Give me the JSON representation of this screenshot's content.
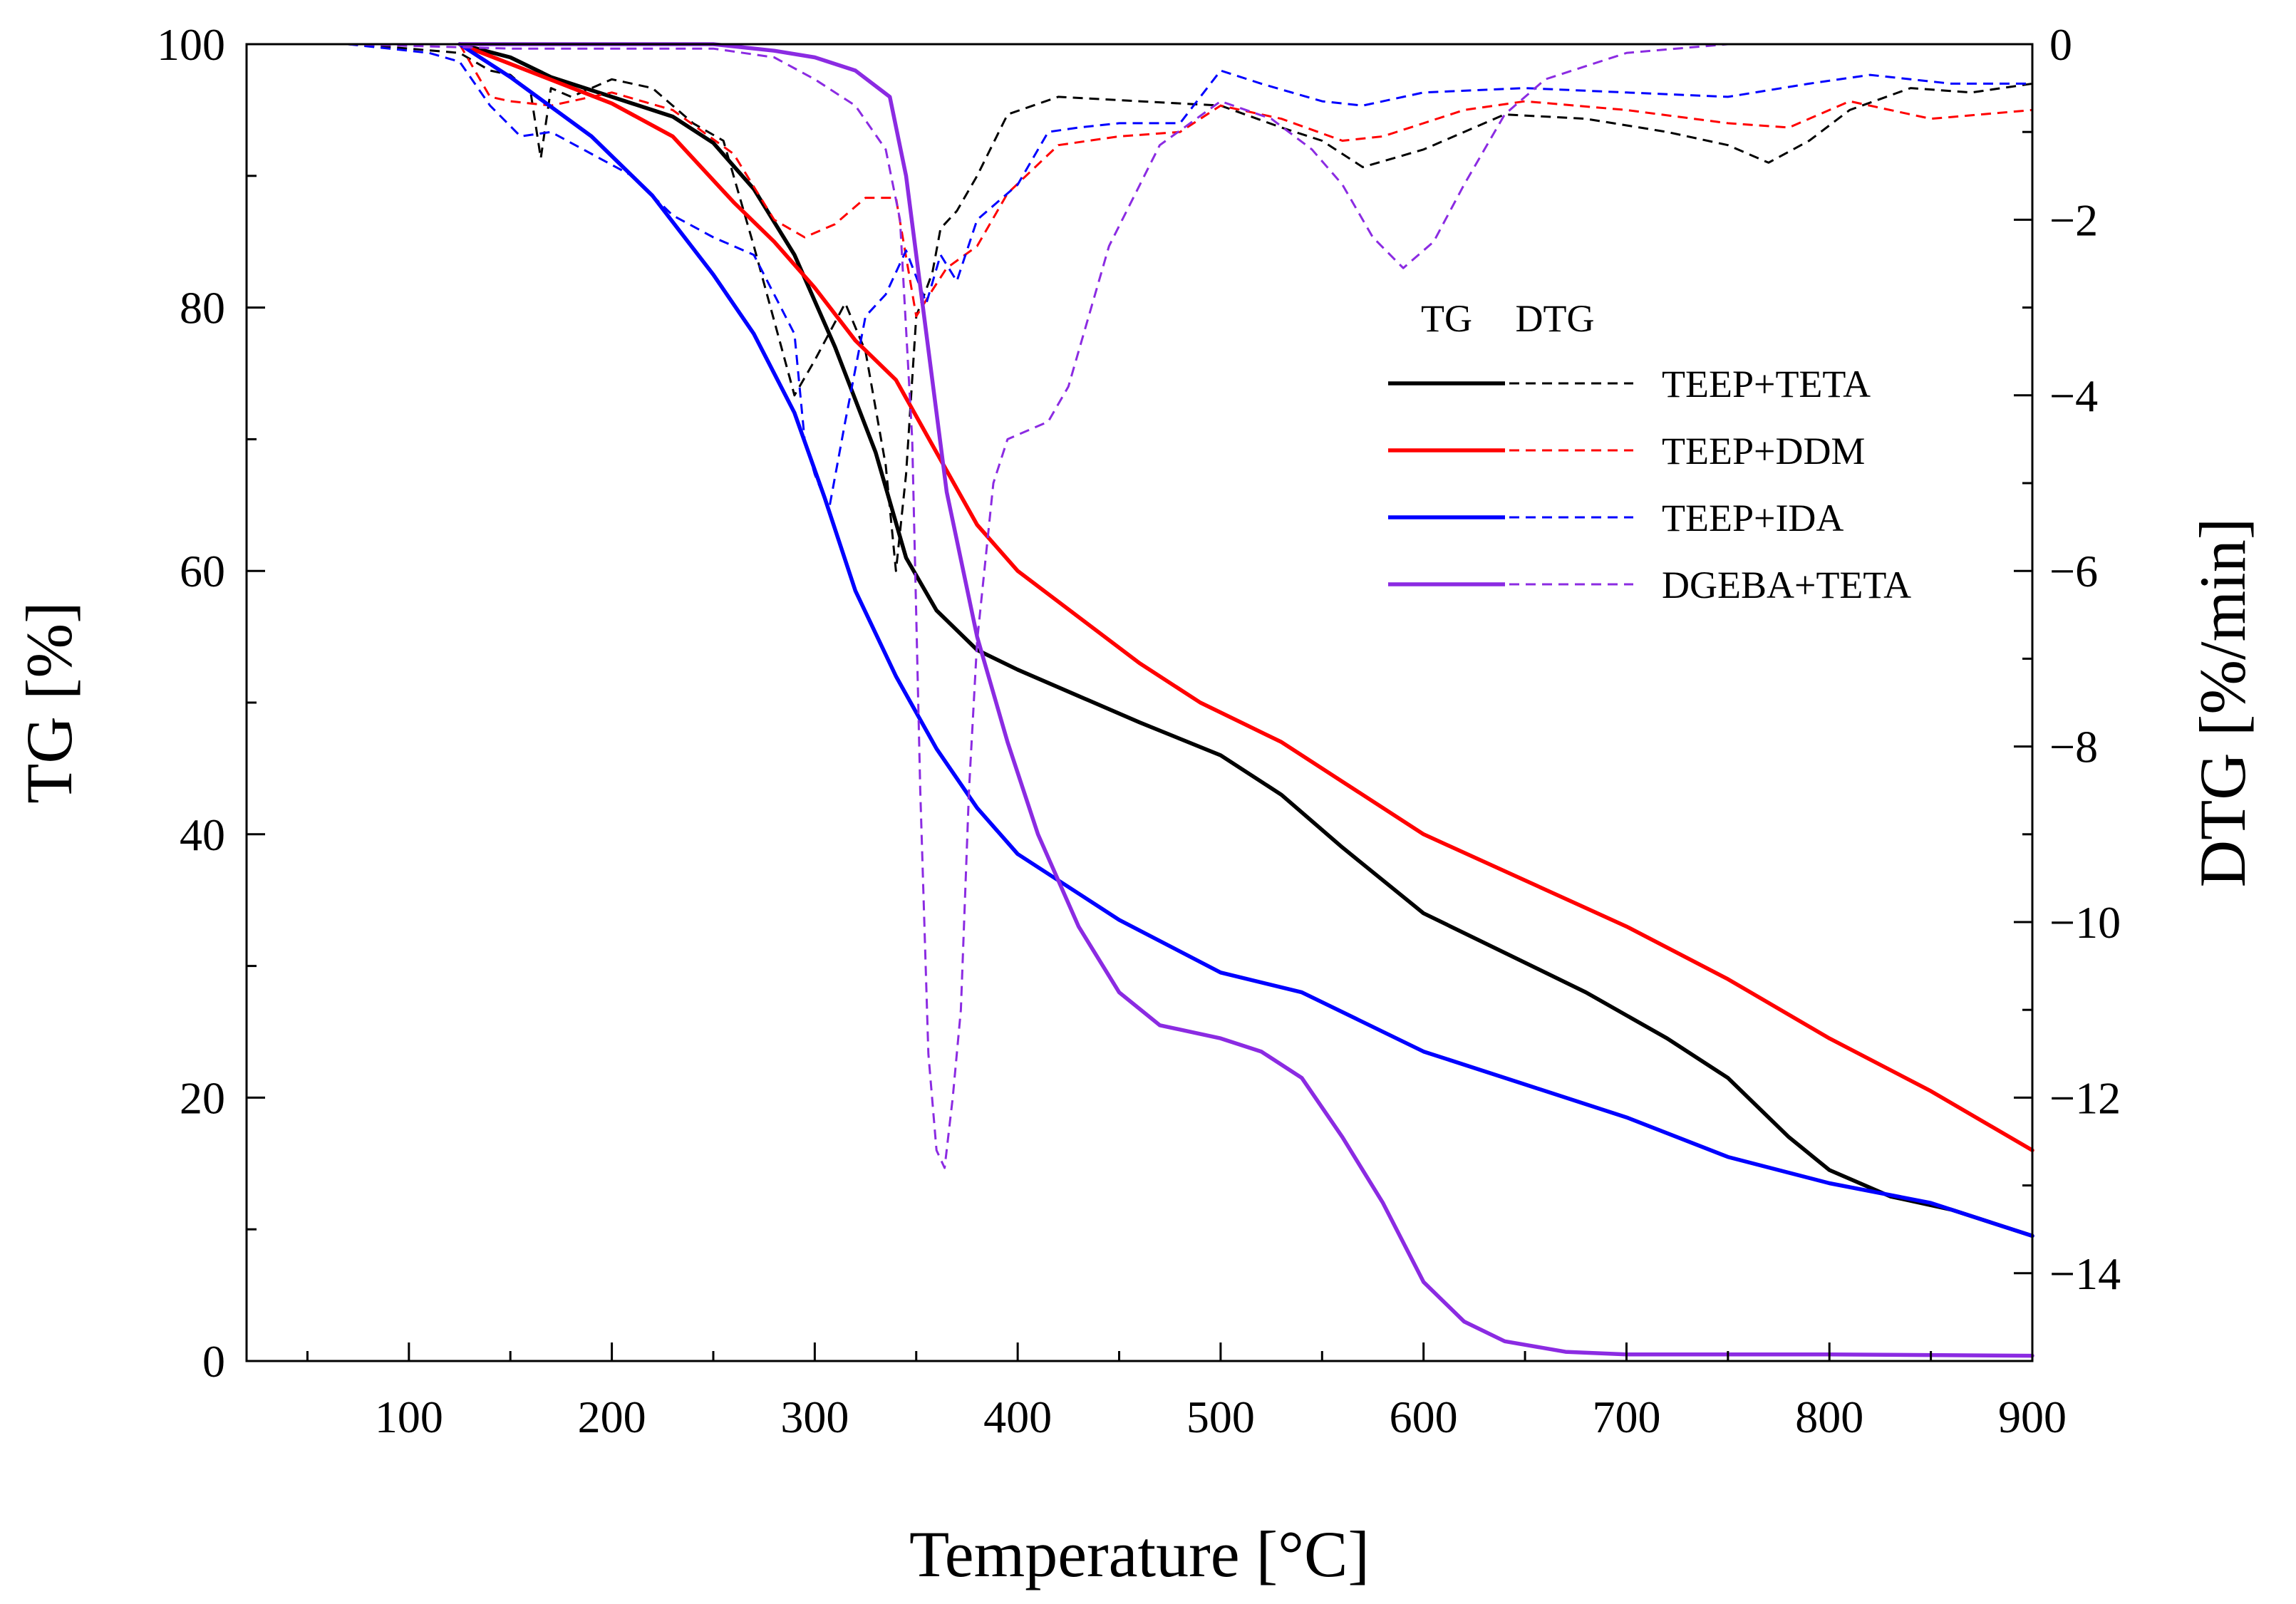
{
  "chart_data": {
    "type": "line",
    "title": "",
    "xlabel": "Temperature [°C]",
    "ylabel": "TG [%]",
    "y2label": "DTG [%/min]",
    "xlim": [
      20,
      900
    ],
    "ylim": [
      0,
      100
    ],
    "y2lim": [
      -15,
      0
    ],
    "x_ticks": [
      100,
      200,
      300,
      400,
      500,
      600,
      700,
      800,
      900
    ],
    "y_ticks": [
      0,
      20,
      40,
      60,
      80,
      100
    ],
    "y2_ticks": [
      0,
      -2,
      -4,
      -6,
      -8,
      -10,
      -12,
      -14
    ],
    "grid": false,
    "legend_position": "center-right",
    "legend_headers": [
      "TG",
      "DTG"
    ],
    "series": [
      {
        "name": "TEEP+TETA",
        "color": "#000000",
        "tg": [
          [
            125,
            100
          ],
          [
            150,
            99
          ],
          [
            170,
            97.5
          ],
          [
            200,
            96
          ],
          [
            230,
            94.5
          ],
          [
            250,
            92.5
          ],
          [
            270,
            89
          ],
          [
            290,
            84
          ],
          [
            310,
            77
          ],
          [
            330,
            69
          ],
          [
            345,
            61
          ],
          [
            360,
            57
          ],
          [
            380,
            54
          ],
          [
            400,
            52.5
          ],
          [
            430,
            50.5
          ],
          [
            460,
            48.5
          ],
          [
            500,
            46
          ],
          [
            530,
            43
          ],
          [
            560,
            39
          ],
          [
            600,
            34
          ],
          [
            640,
            31
          ],
          [
            680,
            28
          ],
          [
            720,
            24.5
          ],
          [
            750,
            21.5
          ],
          [
            780,
            17
          ],
          [
            800,
            14.5
          ],
          [
            830,
            12.5
          ],
          [
            860,
            11.5
          ],
          [
            900,
            9.5
          ]
        ],
        "dtg": [
          [
            70,
            0
          ],
          [
            100,
            -0.05
          ],
          [
            125,
            -0.1
          ],
          [
            140,
            -0.3
          ],
          [
            150,
            -0.35
          ],
          [
            160,
            -0.55
          ],
          [
            165,
            -1.3
          ],
          [
            170,
            -0.5
          ],
          [
            180,
            -0.6
          ],
          [
            200,
            -0.4
          ],
          [
            220,
            -0.5
          ],
          [
            240,
            -0.9
          ],
          [
            255,
            -1.1
          ],
          [
            270,
            -2.3
          ],
          [
            290,
            -4.0
          ],
          [
            300,
            -3.6
          ],
          [
            315,
            -2.95
          ],
          [
            325,
            -3.5
          ],
          [
            335,
            -4.8
          ],
          [
            340,
            -6.0
          ],
          [
            345,
            -4.9
          ],
          [
            350,
            -3.1
          ],
          [
            358,
            -2.6
          ],
          [
            362,
            -2.1
          ],
          [
            370,
            -1.9
          ],
          [
            380,
            -1.5
          ],
          [
            395,
            -0.8
          ],
          [
            420,
            -0.6
          ],
          [
            460,
            -0.65
          ],
          [
            500,
            -0.7
          ],
          [
            530,
            -0.95
          ],
          [
            550,
            -1.1
          ],
          [
            570,
            -1.4
          ],
          [
            600,
            -1.2
          ],
          [
            640,
            -0.8
          ],
          [
            680,
            -0.85
          ],
          [
            720,
            -1.0
          ],
          [
            750,
            -1.15
          ],
          [
            770,
            -1.35
          ],
          [
            790,
            -1.1
          ],
          [
            810,
            -0.75
          ],
          [
            840,
            -0.5
          ],
          [
            870,
            -0.55
          ],
          [
            900,
            -0.45
          ]
        ]
      },
      {
        "name": "TEEP+DDM",
        "color": "#ff0000",
        "tg": [
          [
            125,
            100
          ],
          [
            150,
            98.5
          ],
          [
            200,
            95.5
          ],
          [
            230,
            93
          ],
          [
            260,
            88
          ],
          [
            280,
            85
          ],
          [
            300,
            81.5
          ],
          [
            320,
            77.5
          ],
          [
            340,
            74.5
          ],
          [
            360,
            69
          ],
          [
            380,
            63.5
          ],
          [
            400,
            60
          ],
          [
            430,
            56.5
          ],
          [
            460,
            53
          ],
          [
            490,
            50
          ],
          [
            530,
            47
          ],
          [
            560,
            44
          ],
          [
            600,
            40
          ],
          [
            650,
            36.5
          ],
          [
            700,
            33
          ],
          [
            750,
            29
          ],
          [
            800,
            24.5
          ],
          [
            850,
            20.5
          ],
          [
            900,
            16
          ]
        ],
        "dtg": [
          [
            125,
            0
          ],
          [
            135,
            -0.4
          ],
          [
            140,
            -0.6
          ],
          [
            150,
            -0.65
          ],
          [
            170,
            -0.7
          ],
          [
            200,
            -0.55
          ],
          [
            230,
            -0.75
          ],
          [
            260,
            -1.25
          ],
          [
            280,
            -2.0
          ],
          [
            295,
            -2.2
          ],
          [
            310,
            -2.05
          ],
          [
            325,
            -1.75
          ],
          [
            340,
            -1.75
          ],
          [
            350,
            -3.1
          ],
          [
            358,
            -2.8
          ],
          [
            365,
            -2.55
          ],
          [
            380,
            -2.3
          ],
          [
            395,
            -1.7
          ],
          [
            420,
            -1.15
          ],
          [
            450,
            -1.05
          ],
          [
            480,
            -1.0
          ],
          [
            500,
            -0.7
          ],
          [
            530,
            -0.85
          ],
          [
            560,
            -1.1
          ],
          [
            580,
            -1.05
          ],
          [
            620,
            -0.75
          ],
          [
            650,
            -0.65
          ],
          [
            700,
            -0.75
          ],
          [
            750,
            -0.9
          ],
          [
            780,
            -0.95
          ],
          [
            810,
            -0.65
          ],
          [
            850,
            -0.85
          ],
          [
            900,
            -0.75
          ]
        ]
      },
      {
        "name": "TEEP+IDA",
        "color": "#0000ff",
        "tg": [
          [
            125,
            100
          ],
          [
            150,
            97.5
          ],
          [
            190,
            93
          ],
          [
            220,
            88.5
          ],
          [
            250,
            82.5
          ],
          [
            270,
            78
          ],
          [
            290,
            72
          ],
          [
            305,
            65.5
          ],
          [
            320,
            58.5
          ],
          [
            340,
            52
          ],
          [
            360,
            46.5
          ],
          [
            380,
            42
          ],
          [
            400,
            38.5
          ],
          [
            420,
            36.5
          ],
          [
            450,
            33.5
          ],
          [
            500,
            29.5
          ],
          [
            540,
            28
          ],
          [
            600,
            23.5
          ],
          [
            650,
            21
          ],
          [
            700,
            18.5
          ],
          [
            750,
            15.5
          ],
          [
            800,
            13.5
          ],
          [
            850,
            12
          ],
          [
            900,
            9.5
          ]
        ],
        "dtg": [
          [
            70,
            0
          ],
          [
            110,
            -0.1
          ],
          [
            125,
            -0.2
          ],
          [
            140,
            -0.7
          ],
          [
            155,
            -1.05
          ],
          [
            170,
            -1.0
          ],
          [
            190,
            -1.25
          ],
          [
            210,
            -1.5
          ],
          [
            230,
            -1.95
          ],
          [
            250,
            -2.2
          ],
          [
            270,
            -2.4
          ],
          [
            290,
            -3.3
          ],
          [
            295,
            -4.5
          ],
          [
            300,
            -4.9
          ],
          [
            307,
            -5.3
          ],
          [
            315,
            -4.3
          ],
          [
            325,
            -3.1
          ],
          [
            335,
            -2.85
          ],
          [
            345,
            -2.35
          ],
          [
            355,
            -2.95
          ],
          [
            362,
            -2.4
          ],
          [
            370,
            -2.7
          ],
          [
            380,
            -2.0
          ],
          [
            400,
            -1.6
          ],
          [
            415,
            -1.0
          ],
          [
            430,
            -0.95
          ],
          [
            450,
            -0.9
          ],
          [
            480,
            -0.9
          ],
          [
            500,
            -0.3
          ],
          [
            520,
            -0.45
          ],
          [
            550,
            -0.65
          ],
          [
            570,
            -0.7
          ],
          [
            600,
            -0.55
          ],
          [
            650,
            -0.5
          ],
          [
            700,
            -0.55
          ],
          [
            750,
            -0.6
          ],
          [
            790,
            -0.45
          ],
          [
            820,
            -0.35
          ],
          [
            860,
            -0.45
          ],
          [
            900,
            -0.45
          ]
        ]
      },
      {
        "name": "DGEBA+TETA",
        "color": "#8b2be2",
        "tg": [
          [
            125,
            100
          ],
          [
            200,
            100
          ],
          [
            250,
            100
          ],
          [
            280,
            99.5
          ],
          [
            300,
            99
          ],
          [
            320,
            98
          ],
          [
            337,
            96
          ],
          [
            345,
            90
          ],
          [
            355,
            78
          ],
          [
            365,
            66
          ],
          [
            380,
            55
          ],
          [
            395,
            47
          ],
          [
            410,
            40
          ],
          [
            430,
            33
          ],
          [
            450,
            28
          ],
          [
            470,
            25.5
          ],
          [
            500,
            24.5
          ],
          [
            520,
            23.5
          ],
          [
            540,
            21.5
          ],
          [
            560,
            17
          ],
          [
            580,
            12
          ],
          [
            600,
            6
          ],
          [
            620,
            3
          ],
          [
            640,
            1.5
          ],
          [
            670,
            0.7
          ],
          [
            700,
            0.5
          ],
          [
            800,
            0.5
          ],
          [
            900,
            0.4
          ]
        ],
        "dtg": [
          [
            70,
            0
          ],
          [
            150,
            -0.05
          ],
          [
            200,
            -0.05
          ],
          [
            250,
            -0.05
          ],
          [
            280,
            -0.15
          ],
          [
            300,
            -0.4
          ],
          [
            320,
            -0.7
          ],
          [
            335,
            -1.2
          ],
          [
            342,
            -2.0
          ],
          [
            348,
            -4.5
          ],
          [
            352,
            -8.5
          ],
          [
            356,
            -11.5
          ],
          [
            360,
            -12.6
          ],
          [
            364,
            -12.8
          ],
          [
            368,
            -12.0
          ],
          [
            372,
            -11.0
          ],
          [
            376,
            -8.5
          ],
          [
            380,
            -6.8
          ],
          [
            388,
            -5.0
          ],
          [
            395,
            -4.5
          ],
          [
            415,
            -4.3
          ],
          [
            425,
            -3.9
          ],
          [
            445,
            -2.3
          ],
          [
            470,
            -1.15
          ],
          [
            500,
            -0.65
          ],
          [
            525,
            -0.85
          ],
          [
            545,
            -1.2
          ],
          [
            560,
            -1.6
          ],
          [
            575,
            -2.2
          ],
          [
            590,
            -2.55
          ],
          [
            605,
            -2.25
          ],
          [
            620,
            -1.6
          ],
          [
            640,
            -0.8
          ],
          [
            660,
            -0.4
          ],
          [
            700,
            -0.1
          ],
          [
            750,
            0
          ],
          [
            900,
            0
          ]
        ]
      }
    ]
  }
}
